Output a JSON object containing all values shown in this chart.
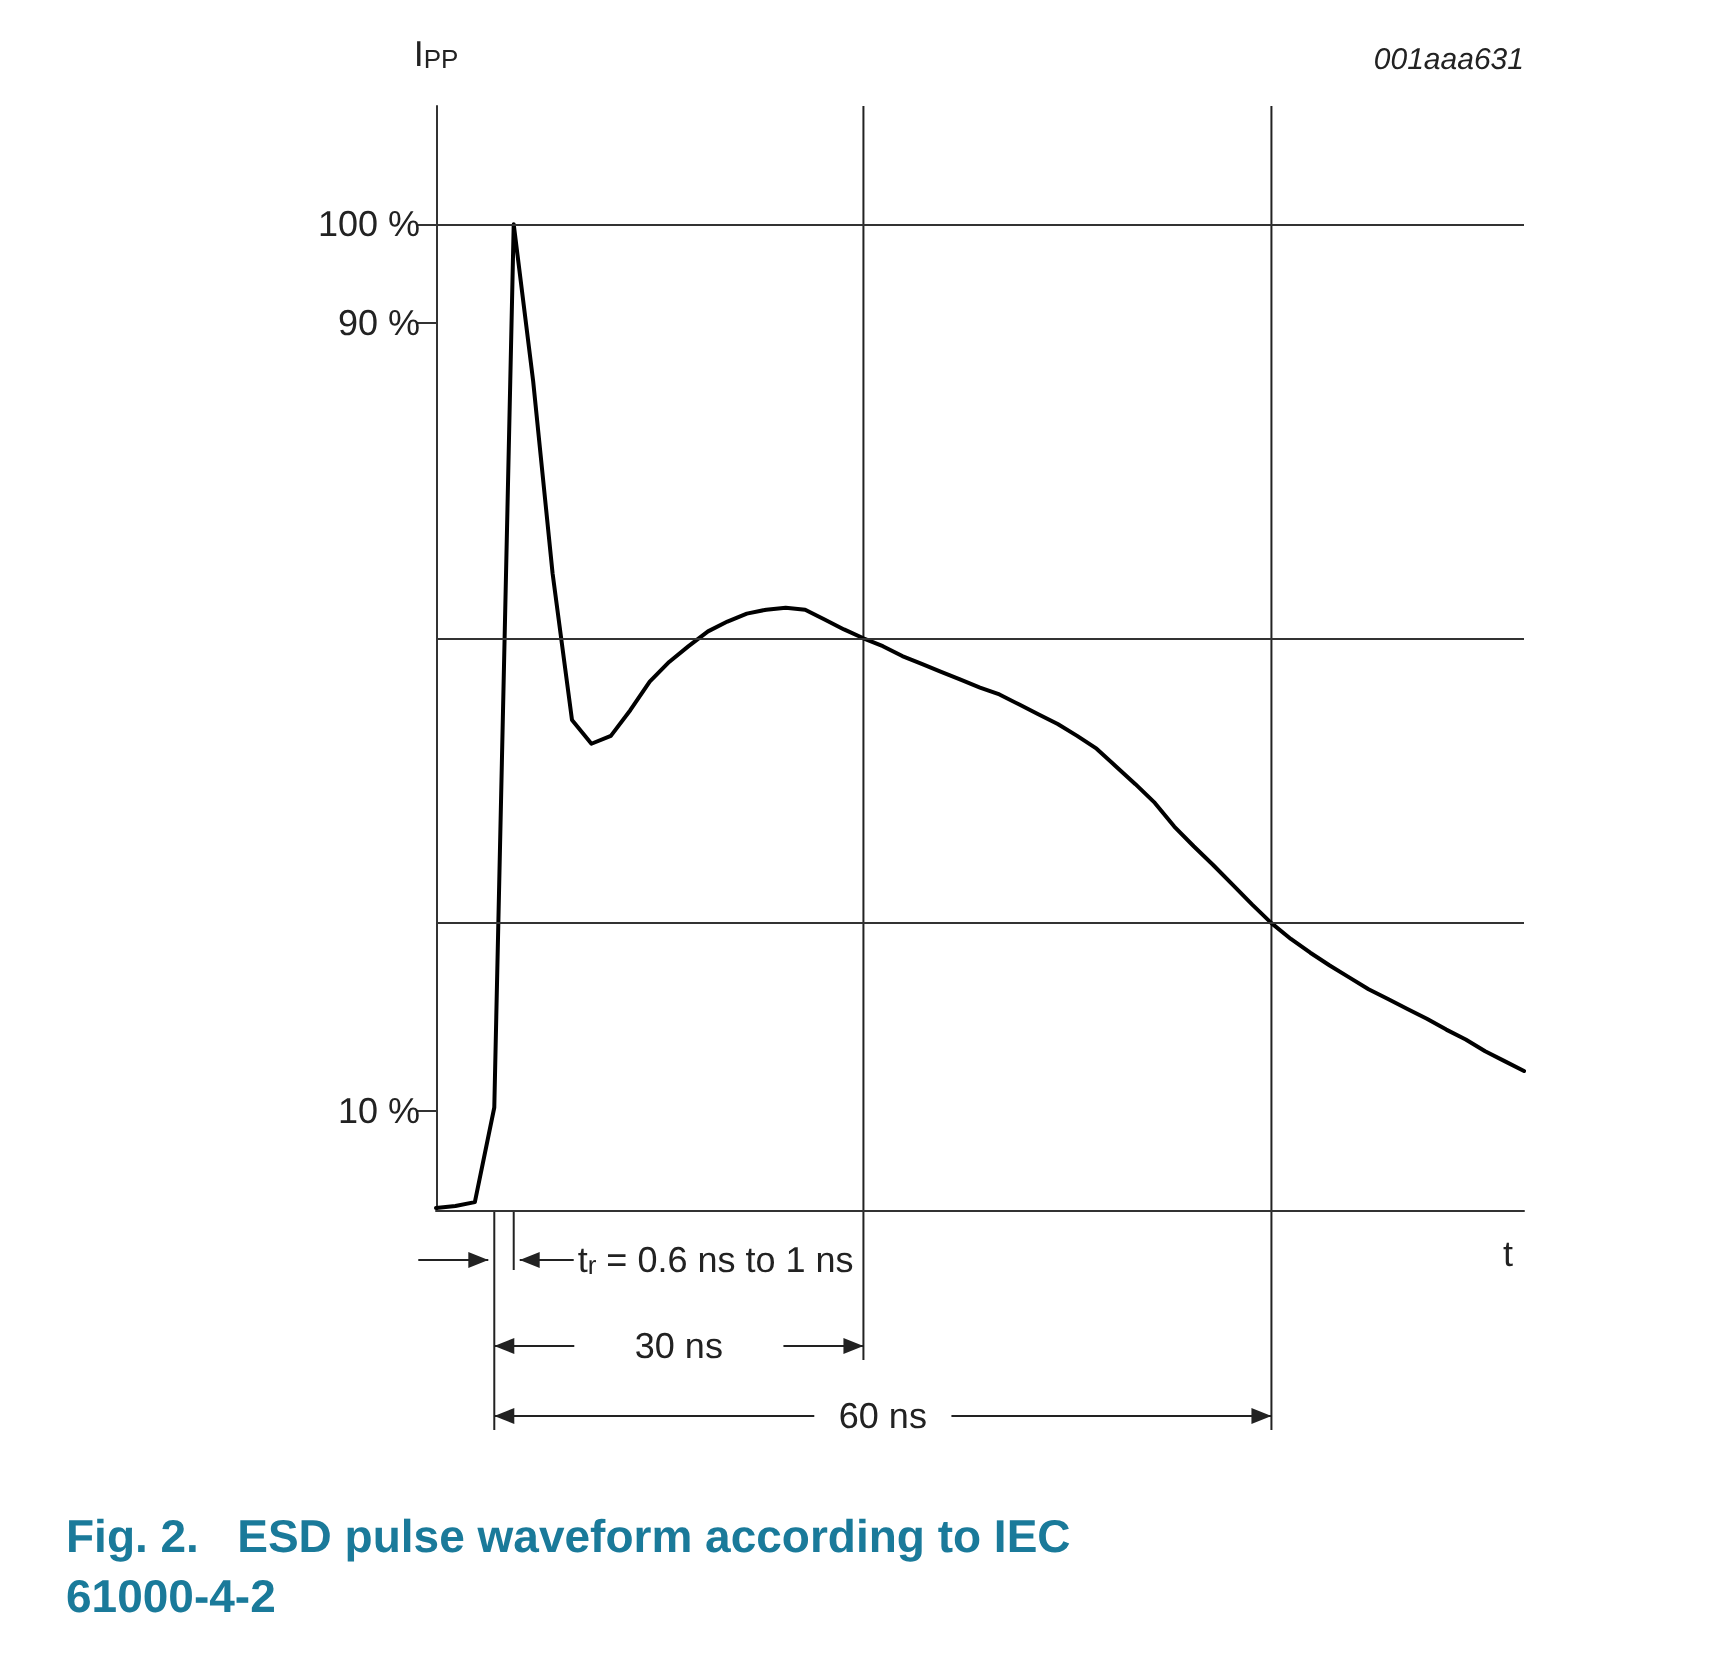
{
  "chart_data": {
    "type": "line",
    "title": "Fig. 2.   ESD pulse waveform according to IEC 61000-4-2",
    "xlabel": "t",
    "ylabel": "I$_{PP}$",
    "categories": [
      null,
      null,
      null,
      null,
      null,
      null,
      null,
      null,
      null,
      null,
      null,
      null,
      null,
      null,
      null,
      null,
      null,
      null,
      null,
      null,
      null,
      null,
      null,
      null,
      null,
      null,
      null,
      null,
      null,
      null,
      null,
      null,
      null,
      null,
      null,
      null,
      null,
      null,
      null,
      null,
      null,
      null,
      null,
      null,
      null,
      null,
      null,
      null,
      null,
      null,
      null,
      null,
      null,
      null,
      null,
      null,
      null
    ],
    "series": [
      {
        "color": "#000000",
        "values": [
          0.2,
          0.4,
          0.8,
          10.4,
          100,
          84.1,
          64.6,
          49.7,
          47.3,
          48.1,
          50.7,
          53.6,
          55.6,
          57.2,
          58.7,
          59.7,
          60.5,
          60.9,
          61.1,
          60.9,
          59.9,
          58.9,
          58.0,
          57.2,
          56.2,
          55.4,
          54.6,
          53.8,
          53.0,
          52.3,
          51.3,
          50.3,
          49.3,
          48.1,
          46.8,
          45.0,
          43.2,
          41.3,
          38.9,
          36.9,
          35.0,
          33.0,
          31.0,
          29.1,
          27.5,
          26.1,
          24.8,
          23.6,
          22.4,
          21.4,
          20.4,
          19.4,
          18.3,
          17.3,
          16.1,
          15.1,
          14.1
        ]
      }
    ],
    "ylim": [
      0,
      112
    ],
    "yticks": [
      {
        "value": 10,
        "label": "10 %"
      },
      {
        "value": 90,
        "label": "90 %"
      },
      {
        "value": 100,
        "label": "100 %"
      }
    ],
    "tick_labels": "y",
    "grid": false,
    "marker": "none",
    "line_style": "solid",
    "ref_lines": [
      {
        "axis": "y",
        "value": 100
      },
      {
        "axis": "y",
        "value": 58
      },
      {
        "axis": "y",
        "value": 29.1
      }
    ],
    "annotations": [
      "001aaa631",
      "t$_{r}$ = 0.6 ns to 1 ns",
      "30 ns",
      "60 ns"
    ]
  }
}
